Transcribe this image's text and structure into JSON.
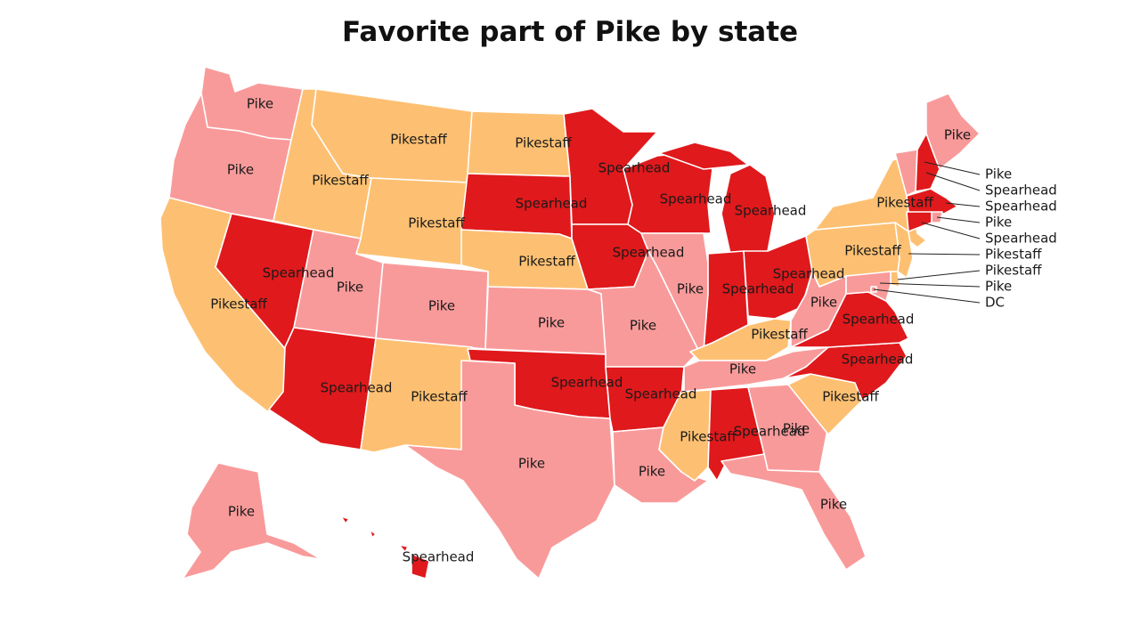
{
  "title": "Favorite part of Pike by state",
  "categories": {
    "pike": {
      "label": "Pike",
      "color": "#f99a9a"
    },
    "spearhead": {
      "label": "Spearhead",
      "color": "#e0191c"
    },
    "pikestaff": {
      "label": "Pikestaff",
      "color": "#fdc072"
    }
  },
  "states": [
    {
      "abbr": "WA",
      "value": "Pike"
    },
    {
      "abbr": "OR",
      "value": "Pike"
    },
    {
      "abbr": "CA",
      "value": "Pikestaff"
    },
    {
      "abbr": "NV",
      "value": "Spearhead"
    },
    {
      "abbr": "ID",
      "value": "Pikestaff"
    },
    {
      "abbr": "MT",
      "value": "Pikestaff"
    },
    {
      "abbr": "WY",
      "value": "Pikestaff"
    },
    {
      "abbr": "UT",
      "value": "Pike"
    },
    {
      "abbr": "AZ",
      "value": "Spearhead"
    },
    {
      "abbr": "CO",
      "value": "Pike"
    },
    {
      "abbr": "NM",
      "value": "Pikestaff"
    },
    {
      "abbr": "ND",
      "value": "Pikestaff"
    },
    {
      "abbr": "SD",
      "value": "Spearhead"
    },
    {
      "abbr": "NE",
      "value": "Pikestaff"
    },
    {
      "abbr": "KS",
      "value": "Pike"
    },
    {
      "abbr": "OK",
      "value": "Spearhead"
    },
    {
      "abbr": "TX",
      "value": "Pike"
    },
    {
      "abbr": "MN",
      "value": "Spearhead"
    },
    {
      "abbr": "IA",
      "value": "Spearhead"
    },
    {
      "abbr": "MO",
      "value": "Pike"
    },
    {
      "abbr": "AR",
      "value": "Spearhead"
    },
    {
      "abbr": "LA",
      "value": "Pike"
    },
    {
      "abbr": "WI",
      "value": "Spearhead"
    },
    {
      "abbr": "IL",
      "value": "Pike"
    },
    {
      "abbr": "MI",
      "value": "Spearhead"
    },
    {
      "abbr": "IN",
      "value": "Spearhead"
    },
    {
      "abbr": "OH",
      "value": "Spearhead"
    },
    {
      "abbr": "KY",
      "value": "Pikestaff"
    },
    {
      "abbr": "TN",
      "value": "Pike"
    },
    {
      "abbr": "MS",
      "value": "Pikestaff"
    },
    {
      "abbr": "AL",
      "value": "Spearhead"
    },
    {
      "abbr": "GA",
      "value": "Pike"
    },
    {
      "abbr": "FL",
      "value": "Pike"
    },
    {
      "abbr": "SC",
      "value": "Pikestaff"
    },
    {
      "abbr": "NC",
      "value": "Spearhead"
    },
    {
      "abbr": "VA",
      "value": "Spearhead"
    },
    {
      "abbr": "WV",
      "value": "Pike"
    },
    {
      "abbr": "PA",
      "value": "Pikestaff"
    },
    {
      "abbr": "NY",
      "value": "Pikestaff"
    },
    {
      "abbr": "ME",
      "value": "Pike"
    },
    {
      "abbr": "VT",
      "value": "Pike"
    },
    {
      "abbr": "NH",
      "value": "Spearhead"
    },
    {
      "abbr": "MA",
      "value": "Spearhead"
    },
    {
      "abbr": "RI",
      "value": "Pike"
    },
    {
      "abbr": "CT",
      "value": "Spearhead"
    },
    {
      "abbr": "NJ",
      "value": "Pikestaff"
    },
    {
      "abbr": "DE",
      "value": "Pikestaff"
    },
    {
      "abbr": "MD",
      "value": "Pike"
    },
    {
      "abbr": "DC",
      "value": "DC"
    },
    {
      "abbr": "AK",
      "value": "Pike"
    },
    {
      "abbr": "HI",
      "value": "Spearhead"
    }
  ]
}
